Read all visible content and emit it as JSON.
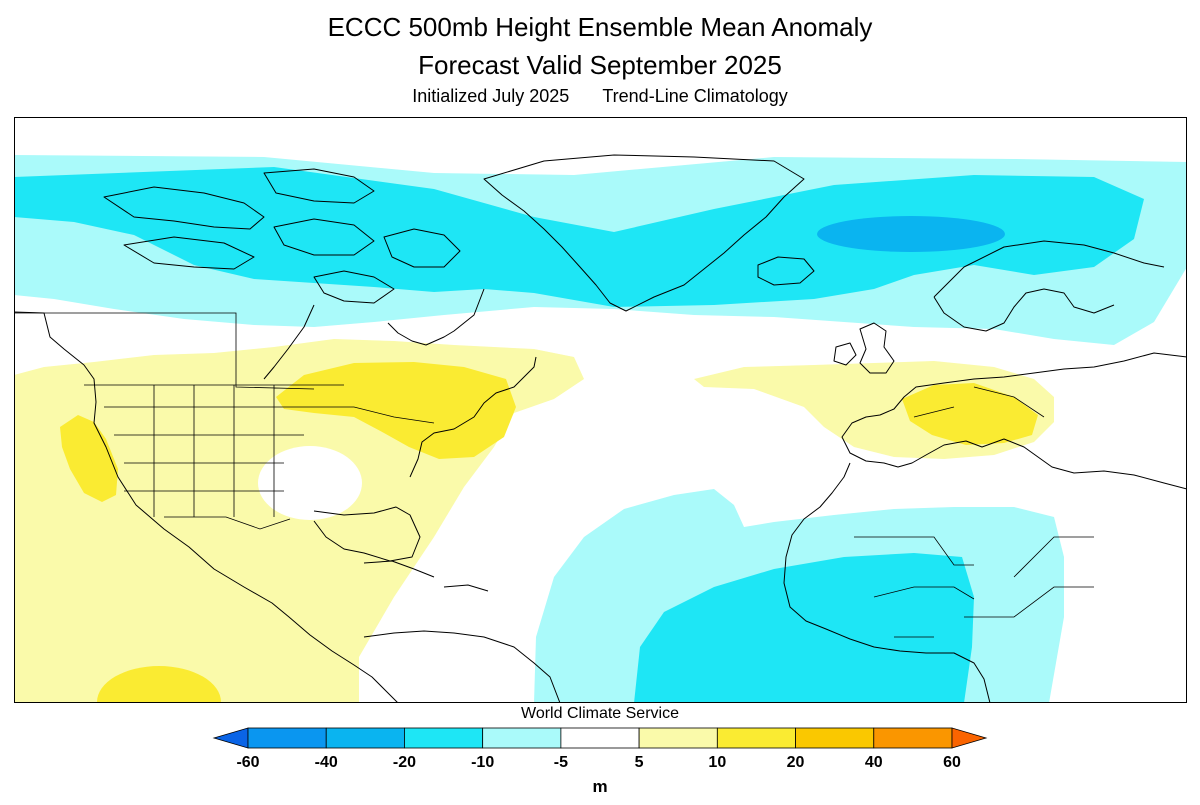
{
  "title": {
    "line1": "ECCC 500mb Height Ensemble Mean Anomaly",
    "line2": "Forecast Valid September 2025",
    "initialized": "Initialized July 2025",
    "climatology": "Trend-Line Climatology"
  },
  "credit": "World Climate Service",
  "colorbar": {
    "unit": "m",
    "ticks": [
      "-60",
      "-40",
      "-20",
      "-10",
      "-5",
      "5",
      "10",
      "20",
      "40",
      "60"
    ],
    "colors": [
      "#0a64e6",
      "#0a96f0",
      "#0ab4f0",
      "#1ee6f5",
      "#aafafa",
      "#ffffff",
      "#fafaaa",
      "#faeb32",
      "#fac800",
      "#fa9600",
      "#fa6400"
    ]
  },
  "palette": {
    "neg40": "#0ab4f0",
    "neg20": "#1ee6f5",
    "neg10": "#aafafa",
    "pos5": "#fafaaa",
    "pos10": "#faeb32",
    "coast": "#000000"
  }
}
